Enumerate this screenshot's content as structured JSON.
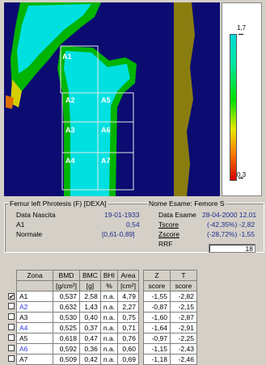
{
  "colorbar": {
    "top_label": "1,7",
    "bottom_label": "0,3"
  },
  "roi_labels": [
    "A1",
    "A2",
    "A5",
    "A3",
    "A6",
    "A4",
    "A7"
  ],
  "info": {
    "header_left": "Femur left  Phrotesis  (F)  [DEXA]",
    "header_right": "Nome Esame: Femore S",
    "birth_label": "Data Nascita",
    "birth_value": "19-01-1933",
    "exam_label": "Data Esame",
    "exam_value": "28-04-2000 12.01",
    "a1_label": "A1",
    "a1_value": "0,54",
    "tscore_label": "Tscore",
    "tscore_value": "(-42,35%) -2,82",
    "normal_label": "Normale",
    "normal_value": "[0,61-0,89]",
    "zscore_label": "Zscore",
    "zscore_value": "(-28,72%) -1,55",
    "rrf_label": "RRF",
    "rrf_value": "18"
  },
  "table": {
    "headers": [
      "Zona",
      "BMD",
      "BMC",
      "BHI",
      "Area",
      "Z",
      "T"
    ],
    "units": [
      "",
      "[g/cm²]",
      "[g]",
      "%",
      "[cm²]",
      "score",
      "score"
    ],
    "rows": [
      {
        "checked": true,
        "zone": "A1",
        "bmd": "0,537",
        "bmc": "2,58",
        "bhi": "n.a.",
        "area": "4,79",
        "z": "-1,55",
        "t": "-2,82"
      },
      {
        "checked": false,
        "zone": "A2",
        "bmd": "0,632",
        "bmc": "1,43",
        "bhi": "n.a.",
        "area": "2,27",
        "z": "-0,87",
        "t": "-2,15"
      },
      {
        "checked": false,
        "zone": "A3",
        "bmd": "0,530",
        "bmc": "0,40",
        "bhi": "n.a.",
        "area": "0,75",
        "z": "-1,60",
        "t": "-2,87"
      },
      {
        "checked": false,
        "zone": "A4",
        "bmd": "0,525",
        "bmc": "0,37",
        "bhi": "n.a.",
        "area": "0,71",
        "z": "-1,64",
        "t": "-2,91"
      },
      {
        "checked": false,
        "zone": "A5",
        "bmd": "0,618",
        "bmc": "0,47",
        "bhi": "n.a.",
        "area": "0,76",
        "z": "-0,97",
        "t": "-2,25"
      },
      {
        "checked": false,
        "zone": "A6",
        "bmd": "0,592",
        "bmc": "0,36",
        "bhi": "n.a.",
        "area": "0,60",
        "z": "-1,15",
        "t": "-2,43"
      },
      {
        "checked": false,
        "zone": "A7",
        "bmd": "0,509",
        "bmc": "0,42",
        "bhi": "n.a.",
        "area": "0,69",
        "z": "-1,18",
        "t": "-2,46"
      }
    ]
  }
}
